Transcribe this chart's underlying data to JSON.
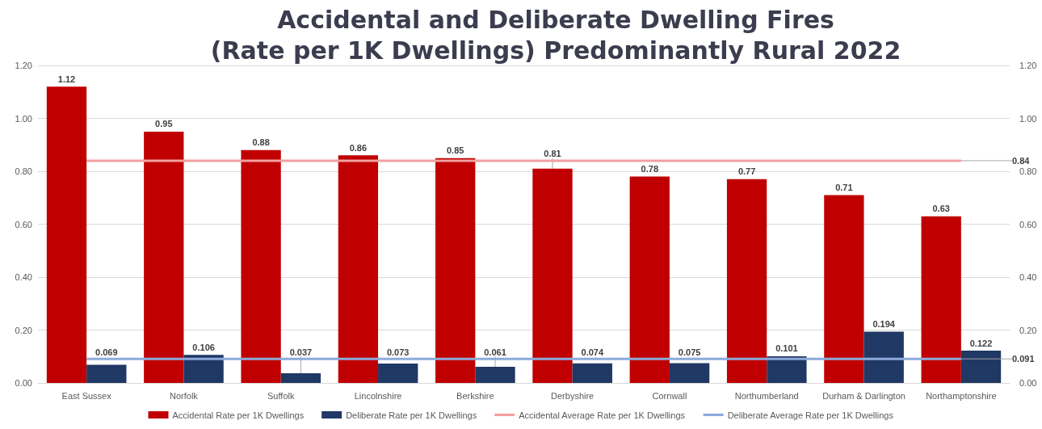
{
  "chart_data": {
    "type": "bar",
    "title": "Accidental and Deliberate Dwelling Fires\n(Rate per 1K Dwellings) Predominantly Rural 2022",
    "categories": [
      "East Sussex",
      "Norfolk",
      "Suffolk",
      "Lincolnshire",
      "Berkshire",
      "Derbyshire",
      "Cornwall",
      "Northumberland",
      "Durham & Darlington",
      "Northamptonshire"
    ],
    "series": [
      {
        "name": "Accidental Rate per 1K Dwellings",
        "color": "#c00000",
        "values": [
          1.12,
          0.95,
          0.88,
          0.86,
          0.85,
          0.81,
          0.78,
          0.77,
          0.71,
          0.63
        ],
        "value_labels": [
          "1.12",
          "0.95",
          "0.88",
          "0.86",
          "0.85",
          "0.81",
          "0.78",
          "0.77",
          "0.71",
          "0.63"
        ]
      },
      {
        "name": "Deliberate Rate per 1K Dwellings",
        "color": "#203864",
        "values": [
          0.069,
          0.106,
          0.037,
          0.073,
          0.061,
          0.074,
          0.075,
          0.101,
          0.194,
          0.122
        ],
        "value_labels": [
          "0.069",
          "0.106",
          "0.037",
          "0.073",
          "0.061",
          "0.074",
          "0.075",
          "0.101",
          "0.194",
          "0.122"
        ]
      },
      {
        "name": "Accidental Average Rate per 1K Dwellings",
        "type": "line",
        "color": "#f2a0a0",
        "values": [
          0.84,
          0.84,
          0.84,
          0.84,
          0.84,
          0.84,
          0.84,
          0.84,
          0.84,
          0.84
        ],
        "value_labels": [
          null,
          null,
          null,
          null,
          null,
          null,
          null,
          null,
          null,
          "0.84"
        ]
      },
      {
        "name": "Deliberate Average Rate per 1K Dwellings",
        "type": "line",
        "color": "#8eaadb",
        "values": [
          0.091,
          0.091,
          0.091,
          0.091,
          0.091,
          0.091,
          0.091,
          0.091,
          0.091,
          0.091
        ],
        "value_labels": [
          null,
          null,
          null,
          null,
          null,
          null,
          null,
          null,
          null,
          "0.091"
        ]
      }
    ],
    "ylim": [
      0,
      1.2
    ],
    "yticks": [
      {
        "value": 0,
        "label": "0.00"
      },
      {
        "value": 0.2,
        "label": "0.20"
      },
      {
        "value": 0.4,
        "label": "0.40"
      },
      {
        "value": 0.6,
        "label": "0.60"
      },
      {
        "value": 0.8,
        "label": "0.80"
      },
      {
        "value": 1,
        "label": "1.00"
      },
      {
        "value": 1.2,
        "label": "1.20"
      }
    ],
    "y2lim": [
      0,
      1.2
    ],
    "y2ticks": [
      {
        "value": 0,
        "label": "0.00"
      },
      {
        "value": 0.2,
        "label": "0.20"
      },
      {
        "value": 0.4,
        "label": "0.40"
      },
      {
        "value": 0.6,
        "label": "0.60"
      },
      {
        "value": 0.8,
        "label": "0.80"
      },
      {
        "value": 1,
        "label": "1.00"
      },
      {
        "value": 1.2,
        "label": "1.20"
      }
    ],
    "grid": "y",
    "legend": "bottom",
    "marker": "none"
  }
}
